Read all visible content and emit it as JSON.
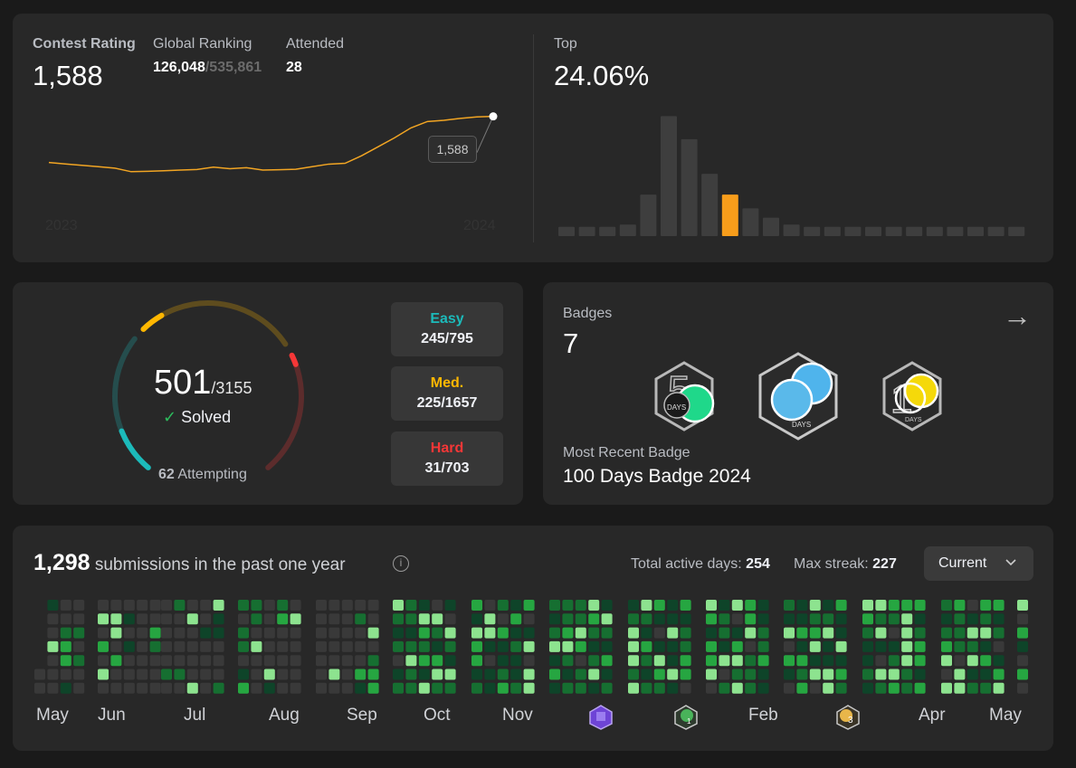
{
  "contest": {
    "rating_label": "Contest Rating",
    "rating_value": "1,588",
    "ranking_label": "Global Ranking",
    "ranking_value": "126,048",
    "ranking_total": "/535,861",
    "attended_label": "Attended",
    "attended_value": "28",
    "year_start": "2023",
    "year_end": "2024",
    "tooltip_value": "1,588",
    "top_label": "Top",
    "top_value": "24.06%"
  },
  "chart_data": [
    {
      "type": "line",
      "x": [
        "2023",
        "",
        "",
        "",
        "",
        "",
        "",
        "",
        "",
        "",
        "",
        "",
        "",
        "",
        "",
        "",
        "",
        "",
        "",
        "",
        "",
        "",
        "",
        "",
        "",
        "",
        "",
        "2024"
      ],
      "values": [
        1356,
        1349,
        1342,
        1335,
        1328,
        1310,
        1312,
        1315,
        1318,
        1321,
        1333,
        1325,
        1330,
        1318,
        1320,
        1322,
        1335,
        1348,
        1352,
        1390,
        1435,
        1480,
        1530,
        1562,
        1568,
        1578,
        1585,
        1588
      ],
      "series_name": "",
      "annotation": "1,588",
      "xlabel": "",
      "ylabel": "",
      "color": "#f2a523"
    },
    {
      "type": "bar",
      "values": [
        4,
        4,
        4,
        5,
        18,
        52,
        42,
        27,
        18,
        12,
        8,
        5,
        4,
        4,
        4,
        4,
        4,
        4,
        4,
        4,
        4,
        4,
        4
      ],
      "highlight_index": 8,
      "bar_color": "#3e3e3e",
      "highlight_color": "#f79d1b"
    }
  ],
  "solved": {
    "count": "501",
    "total": "/3155",
    "check": "✓",
    "solved_label": "Solved",
    "attempting_count": "62",
    "attempting_label": "Attempting",
    "easy": {
      "label": "Easy",
      "value": "245/795",
      "color": "#1cbaba"
    },
    "medium": {
      "label": "Med.",
      "value": "225/1657",
      "color": "#ffb700"
    },
    "hard": {
      "label": "Hard",
      "value": "31/703",
      "color": "#f63737"
    }
  },
  "badges": {
    "label": "Badges",
    "count": "7",
    "arrow": "→",
    "recent_label": "Most Recent Badge",
    "recent_value": "100 Days Badge 2024",
    "items": [
      {
        "name": "50 Days Badge",
        "text": "DAYS",
        "digit": "5"
      },
      {
        "name": "Daily Badge",
        "text": "DAYS"
      },
      {
        "name": "100 Days Badge",
        "text": "DAYS",
        "digit": "1"
      }
    ]
  },
  "submissions": {
    "count": "1,298",
    "label": " submissions in the past one year",
    "info_icon": "i",
    "active_days_label": "Total active days: ",
    "active_days_value": "254",
    "streak_label": "Max streak: ",
    "streak_value": "227",
    "dropdown_value": "Current",
    "months": [
      "May",
      "Jun",
      "Jul",
      "Aug",
      "Sep",
      "Oct",
      "Nov",
      "Feb",
      "Apr",
      "May"
    ],
    "month_badges": [
      "1",
      "3"
    ]
  }
}
